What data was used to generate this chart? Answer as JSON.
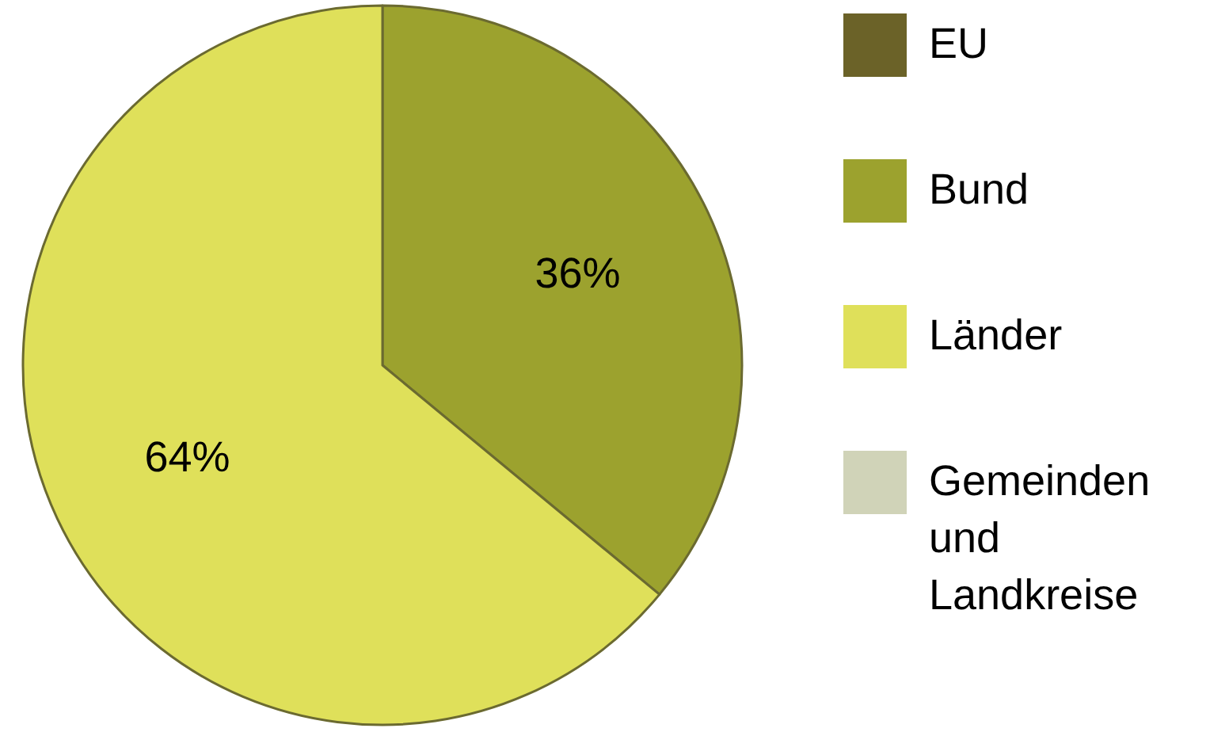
{
  "chart_data": {
    "type": "pie",
    "categories": [
      "EU",
      "Bund",
      "Länder",
      "Gemeinden und Landkreise"
    ],
    "values": [
      0,
      36,
      64,
      0
    ],
    "colors": [
      "#6b6228",
      "#9ca22e",
      "#dfe05a",
      "#d0d3b8"
    ],
    "value_labels": [
      null,
      "36%",
      "64%",
      null
    ],
    "legend": "right"
  }
}
